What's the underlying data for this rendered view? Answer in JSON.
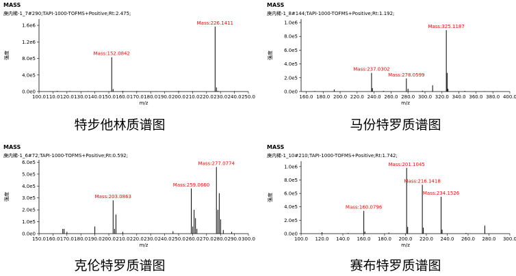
{
  "chart_data": [
    {
      "type": "spectrum",
      "title": "MASS",
      "subtitle": "庚内稀-1_7#290;TAPI-1000-TOFMS+Positive;Rt:2.475;",
      "ylabel": "强度",
      "xlabel": "m/z",
      "caption": "特步他林质谱图",
      "color": "#000000",
      "label_color": "#ff0000",
      "xlim": [
        100,
        250
      ],
      "ylim": [
        0,
        1750000
      ],
      "xticks": [
        {
          "value": 100,
          "label": "100.0"
        },
        {
          "value": 110,
          "label": "110.0"
        },
        {
          "value": 120,
          "label": "120.0"
        },
        {
          "value": 130,
          "label": "130.0"
        },
        {
          "value": 140,
          "label": "140.0"
        },
        {
          "value": 150,
          "label": "150.0"
        },
        {
          "value": 160,
          "label": "160.0"
        },
        {
          "value": 170,
          "label": "170.0"
        },
        {
          "value": 180,
          "label": "180.0"
        },
        {
          "value": 190,
          "label": "190.0"
        },
        {
          "value": 200,
          "label": "200.0"
        },
        {
          "value": 210,
          "label": "210.0"
        },
        {
          "value": 220,
          "label": "220.0"
        },
        {
          "value": 230,
          "label": "230.0"
        },
        {
          "value": 240,
          "label": "240.0"
        },
        {
          "value": 250,
          "label": "250.0"
        }
      ],
      "yticks": [
        {
          "value": 0,
          "label": "0.0e0"
        },
        {
          "value": 400000,
          "label": "4.0e5"
        },
        {
          "value": 800000,
          "label": "8.0e5"
        },
        {
          "value": 1200000,
          "label": "1.2e6"
        },
        {
          "value": 1600000,
          "label": "1.6e6"
        }
      ],
      "x": [
        108.1,
        113.0,
        122.1,
        135.0,
        152.0842,
        153.1,
        160.0,
        170.1,
        184.0,
        200.1,
        210.0,
        226.1411,
        227.1,
        228.1,
        240.0
      ],
      "values": [
        8000,
        15000,
        12000,
        9000,
        830000,
        60000,
        15000,
        12000,
        8000,
        14000,
        9000,
        1570000,
        100000,
        15000,
        10000
      ],
      "peak_labels": [
        null,
        null,
        null,
        null,
        "Mass:152.0842",
        null,
        null,
        null,
        null,
        null,
        null,
        "Mass:226.1411",
        null,
        null,
        null
      ]
    },
    {
      "type": "spectrum",
      "title": "MASS",
      "subtitle": "庚内稀-1_8#144;TAPI-1000-TOFMS+Positive;Rt:1.192;",
      "ylabel": "强度",
      "xlabel": "m/z",
      "caption": "马份特罗质谱图",
      "color": "#000000",
      "label_color": "#ff0000",
      "xlim": [
        154,
        400
      ],
      "ylim": [
        0,
        1050000
      ],
      "xticks": [
        {
          "value": 160,
          "label": "160.0"
        },
        {
          "value": 180,
          "label": "180.0"
        },
        {
          "value": 200,
          "label": "200.0"
        },
        {
          "value": 220,
          "label": "220.0"
        },
        {
          "value": 240,
          "label": "240.0"
        },
        {
          "value": 260,
          "label": "260.0"
        },
        {
          "value": 280,
          "label": "280.0"
        },
        {
          "value": 300,
          "label": "300.0"
        },
        {
          "value": 320,
          "label": "320.0"
        },
        {
          "value": 340,
          "label": "340.0"
        },
        {
          "value": 360,
          "label": "360.0"
        },
        {
          "value": 380,
          "label": "380.0"
        },
        {
          "value": 400,
          "label": "400.0"
        }
      ],
      "yticks": [
        {
          "value": 0,
          "label": "0.0e0"
        },
        {
          "value": 200000,
          "label": "2.0e5"
        },
        {
          "value": 400000,
          "label": "4.0e5"
        },
        {
          "value": 600000,
          "label": "6.0e5"
        },
        {
          "value": 800000,
          "label": "8.0e5"
        },
        {
          "value": 1000000,
          "label": "1.0e6"
        }
      ],
      "x": [
        170.0,
        193.0,
        237.0302,
        238.0,
        251.0,
        278.0599,
        280.0,
        297.0,
        309.0,
        325.1187,
        326.1,
        327.1,
        347.0,
        370.0
      ],
      "values": [
        8000,
        30000,
        270000,
        50000,
        10000,
        190000,
        40000,
        12000,
        90000,
        890000,
        270000,
        40000,
        10000,
        6000
      ],
      "peak_labels": [
        null,
        null,
        "Mass:237.0302",
        null,
        null,
        "Mass:278.0599",
        null,
        null,
        null,
        "Mass:325.1187",
        null,
        null,
        null,
        null
      ]
    },
    {
      "type": "spectrum",
      "title": "MASS",
      "subtitle": "庚内稀-1_6#72;TAPI-1000-TOFMS+Positive;Rt:0.592;",
      "ylabel": "强度",
      "xlabel": "m/z",
      "caption": "克伦特罗质谱图",
      "color": "#000000",
      "label_color": "#ff0000",
      "xlim": [
        150,
        300
      ],
      "ylim": [
        0,
        620000
      ],
      "xticks": [
        {
          "value": 150,
          "label": "150.0"
        },
        {
          "value": 160,
          "label": "160.0"
        },
        {
          "value": 170,
          "label": "170.0"
        },
        {
          "value": 180,
          "label": "180.0"
        },
        {
          "value": 190,
          "label": "190.0"
        },
        {
          "value": 200,
          "label": "200.0"
        },
        {
          "value": 210,
          "label": "210.0"
        },
        {
          "value": 220,
          "label": "220.0"
        },
        {
          "value": 230,
          "label": "230.0"
        },
        {
          "value": 240,
          "label": "240.0"
        },
        {
          "value": 250,
          "label": "250.0"
        },
        {
          "value": 260,
          "label": "260.0"
        },
        {
          "value": 270,
          "label": "270.0"
        },
        {
          "value": 280,
          "label": "280.0"
        },
        {
          "value": 290,
          "label": "290.0"
        },
        {
          "value": 300,
          "label": "300.0"
        }
      ],
      "yticks": [
        {
          "value": 0,
          "label": "0.0e0"
        },
        {
          "value": 100000,
          "label": "1.0e5"
        },
        {
          "value": 200000,
          "label": "2.0e5"
        },
        {
          "value": 300000,
          "label": "3.0e5"
        },
        {
          "value": 400000,
          "label": "4.0e5"
        },
        {
          "value": 500000,
          "label": "5.0e5"
        },
        {
          "value": 600000,
          "label": "6.0e5"
        }
      ],
      "x": [
        167.0,
        168.0,
        170.0,
        190.0,
        203.0863,
        204.1,
        205.1,
        210.0,
        246.0,
        259.066,
        260.1,
        261.1,
        262.1,
        263.1,
        277.0774,
        278.1,
        279.1,
        280.1,
        282.0,
        288.0
      ],
      "values": [
        40000,
        40000,
        15000,
        60000,
        280000,
        40000,
        160000,
        15000,
        20000,
        380000,
        60000,
        200000,
        130000,
        40000,
        560000,
        200000,
        340000,
        120000,
        30000,
        15000
      ],
      "peak_labels": [
        null,
        null,
        null,
        null,
        "Mass:203.0863",
        null,
        null,
        null,
        null,
        "Mass:259.0660",
        null,
        null,
        null,
        null,
        "Mass:277.0774",
        null,
        null,
        null,
        null,
        null
      ]
    },
    {
      "type": "spectrum",
      "title": "MASS",
      "subtitle": "庚内稀-1_10#210;TAPI-1000-TOFMS+Positive;Rt:1.742;",
      "ylabel": "强度",
      "xlabel": "m/z",
      "caption": "赛布特罗质谱图",
      "color": "#000000",
      "label_color": "#ff0000",
      "xlim": [
        100,
        300
      ],
      "ylim": [
        0,
        1080000
      ],
      "xticks": [
        {
          "value": 100,
          "label": "100.0"
        },
        {
          "value": 120,
          "label": "120.0"
        },
        {
          "value": 140,
          "label": "140.0"
        },
        {
          "value": 160,
          "label": "160.0"
        },
        {
          "value": 180,
          "label": "180.0"
        },
        {
          "value": 200,
          "label": "200.0"
        },
        {
          "value": 220,
          "label": "220.0"
        },
        {
          "value": 240,
          "label": "240.0"
        },
        {
          "value": 260,
          "label": "260.0"
        },
        {
          "value": 280,
          "label": "280.0"
        },
        {
          "value": 300,
          "label": "300.0"
        }
      ],
      "yticks": [
        {
          "value": 0,
          "label": "0.0e0"
        },
        {
          "value": 200000,
          "label": "2.0e5"
        },
        {
          "value": 400000,
          "label": "4.0e5"
        },
        {
          "value": 600000,
          "label": "6.0e5"
        },
        {
          "value": 800000,
          "label": "8.0e5"
        },
        {
          "value": 1000000,
          "label": "1.0e6"
        }
      ],
      "x": [
        120.0,
        145.0,
        160.0796,
        161.1,
        184.0,
        201.1045,
        202.1,
        216.1418,
        217.1,
        234.1526,
        235.1,
        258.0,
        276.0
      ],
      "values": [
        20000,
        10000,
        340000,
        30000,
        15000,
        980000,
        100000,
        730000,
        90000,
        550000,
        60000,
        10000,
        120000
      ],
      "peak_labels": [
        null,
        null,
        "Mass:160.0796",
        null,
        null,
        "Mass:201.1045",
        null,
        "Mass:216.1418",
        null,
        "Mass:234.1526",
        null,
        null,
        null
      ]
    }
  ]
}
